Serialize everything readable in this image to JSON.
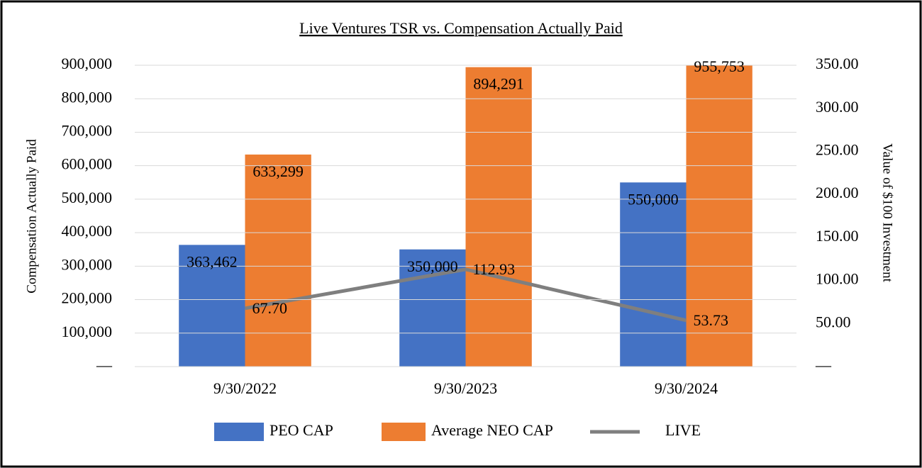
{
  "chart_data": {
    "type": "bar",
    "title": "Live Ventures TSR vs. Compensation Actually Paid",
    "ylabel": "Compensation Actually Paid",
    "y2label": "Value of $100 Investment",
    "categories": [
      "9/30/2022",
      "9/30/2023",
      "9/30/2024"
    ],
    "series": [
      {
        "name": "PEO CAP",
        "type": "bar",
        "color": "#4472c4",
        "values": [
          363462,
          350000,
          550000
        ],
        "value_labels": [
          "363,462",
          "350,000",
          "550,000"
        ]
      },
      {
        "name": "Average NEO CAP",
        "type": "bar",
        "color": "#ed7d31",
        "values": [
          633299,
          894291,
          955753
        ],
        "value_labels": [
          "633,299",
          "894,291",
          "955,753"
        ]
      },
      {
        "name": "LIVE",
        "type": "line",
        "axis": "y2",
        "color": "#7f7f7f",
        "values": [
          67.7,
          112.93,
          53.73
        ],
        "value_labels": [
          "67.70",
          "112.93",
          "53.73"
        ]
      }
    ],
    "ylim": [
      0,
      900000
    ],
    "yticks": [
      {
        "value": 0,
        "label": "—"
      },
      {
        "value": 100000,
        "label": "100,000"
      },
      {
        "value": 200000,
        "label": "200,000"
      },
      {
        "value": 300000,
        "label": "300,000"
      },
      {
        "value": 400000,
        "label": "400,000"
      },
      {
        "value": 500000,
        "label": "500,000"
      },
      {
        "value": 600000,
        "label": "600,000"
      },
      {
        "value": 700000,
        "label": "700,000"
      },
      {
        "value": 800000,
        "label": "800,000"
      },
      {
        "value": 900000,
        "label": "900,000"
      }
    ],
    "y2lim": [
      0,
      350
    ],
    "y2ticks": [
      {
        "value": 0,
        "label": "—"
      },
      {
        "value": 50,
        "label": "50.00"
      },
      {
        "value": 100,
        "label": "100.00"
      },
      {
        "value": 150,
        "label": "150.00"
      },
      {
        "value": 200,
        "label": "200.00"
      },
      {
        "value": 250,
        "label": "250.00"
      },
      {
        "value": 300,
        "label": "300.00"
      },
      {
        "value": 350,
        "label": "350.00"
      }
    ],
    "grid": true,
    "legend": "bottom"
  }
}
